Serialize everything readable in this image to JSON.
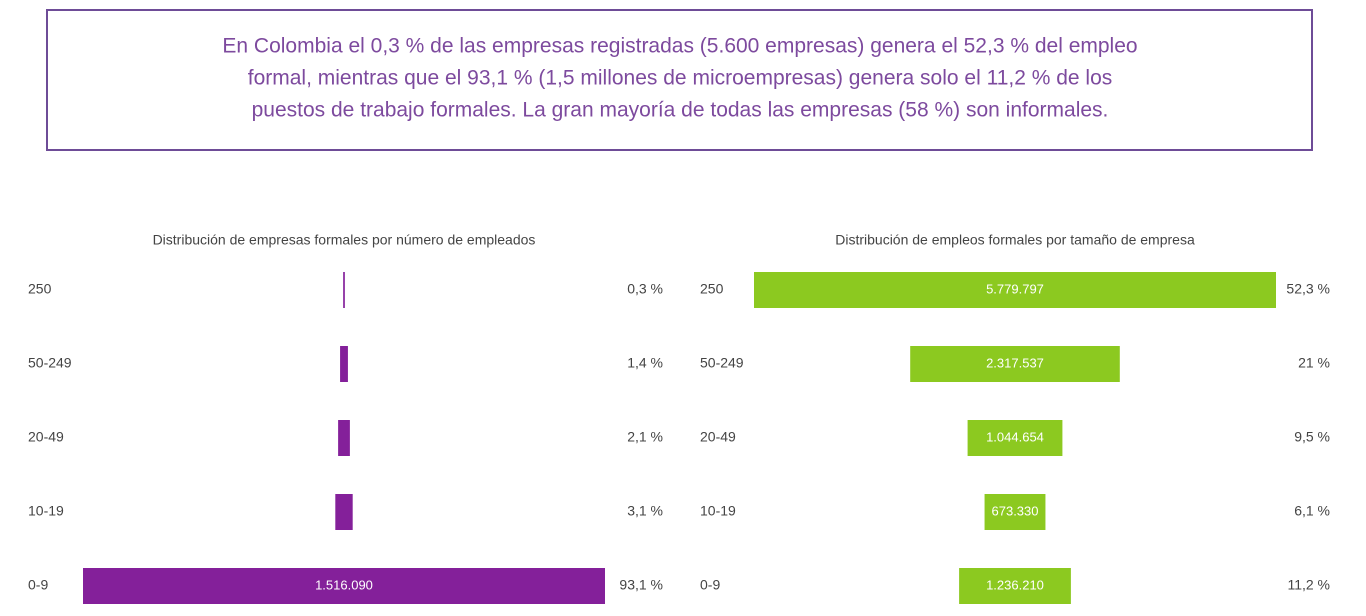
{
  "header": {
    "lines": [
      "En Colombia el 0,3 % de las empresas registradas (5.600 empresas) genera el 52,3 % del empleo",
      "formal, mientras que el 93,1 % (1,5 millones de microempresas) genera solo el 11,2 % de los",
      "puestos de trabajo formales. La gran mayoría de todas las empresas (58 %) son informales."
    ]
  },
  "chart_data": [
    {
      "type": "bar",
      "title": "Distribución de empresas formales por número de empleados",
      "categories": [
        "250",
        "50-249",
        "20-49",
        "10-19",
        "0-9"
      ],
      "values": [
        0.3,
        1.4,
        2.1,
        3.1,
        93.1
      ],
      "value_labels": [
        "0,3 %",
        "1,4 %",
        "2,1 %",
        "3,1 %",
        "93,1 %"
      ],
      "bar_labels": [
        null,
        null,
        null,
        null,
        "1.516.090"
      ],
      "color": "#84209a"
    },
    {
      "type": "bar",
      "title": "Distribución de empleos formales por tamaño de empresa",
      "categories": [
        "250",
        "50-249",
        "20-49",
        "10-19",
        "0-9"
      ],
      "values": [
        52.3,
        21,
        9.5,
        6.1,
        11.2
      ],
      "value_labels": [
        "52,3 %",
        "21 %",
        "9,5 %",
        "6,1 %",
        "11,2 %"
      ],
      "bar_labels": [
        "5.779.797",
        "2.317.537",
        "1.044.654",
        "673.330",
        "1.236.210"
      ],
      "color": "#8cc920"
    }
  ]
}
